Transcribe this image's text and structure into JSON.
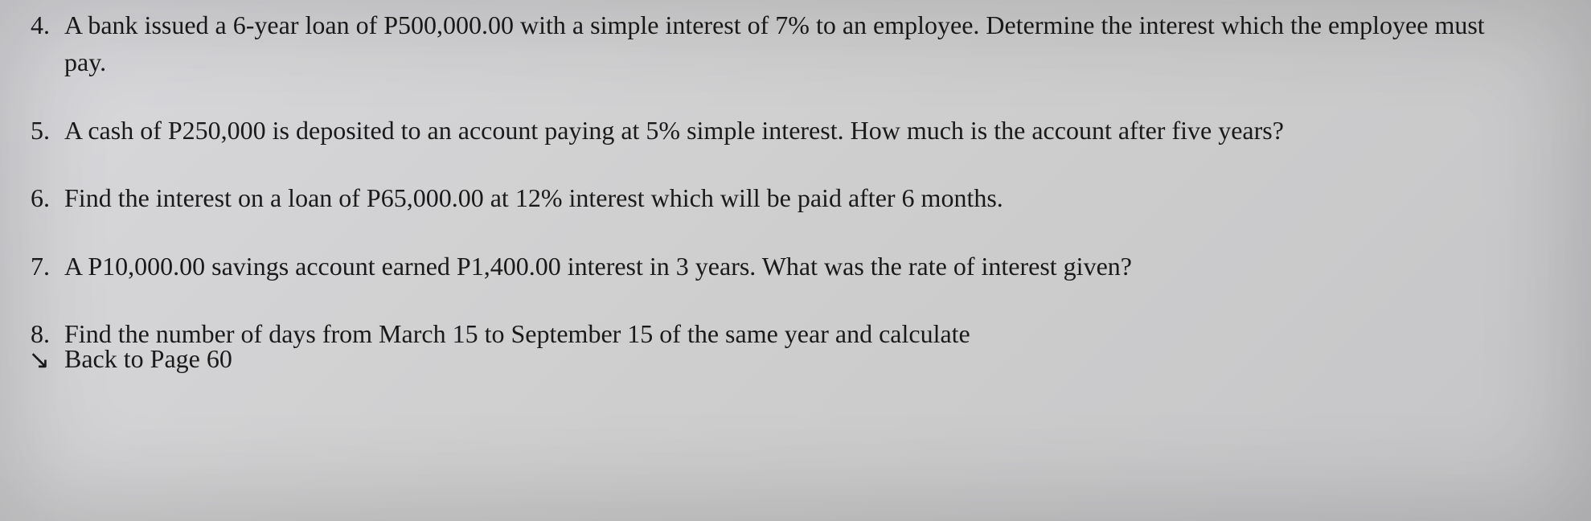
{
  "document": {
    "background_color": "#d4d4d7",
    "text_color": "#1a1a1a",
    "font_family": "Times New Roman",
    "font_size_pt": 24
  },
  "questions": [
    {
      "number": "4.",
      "text": "A bank issued a 6-year loan of P500,000.00 with a simple interest of 7% to an employee. Determine the interest which the employee must pay."
    },
    {
      "number": "5.",
      "text": "A cash of P250,000 is deposited to an account paying at 5% simple interest. How much is the account after five years?"
    },
    {
      "number": "6.",
      "text": "Find the interest on a loan of P65,000.00 at 12% interest which will be paid after 6 months."
    },
    {
      "number": "7.",
      "text": "A P10,000.00 savings account earned P1,400.00 interest in 3 years. What was the rate of interest given?"
    },
    {
      "number": "8.",
      "text": "Find the number of days from March 15 to September 15 of the same year and calculate"
    }
  ],
  "cutoff": {
    "arrow": "↘",
    "partial_text": "Back to Page 60"
  }
}
